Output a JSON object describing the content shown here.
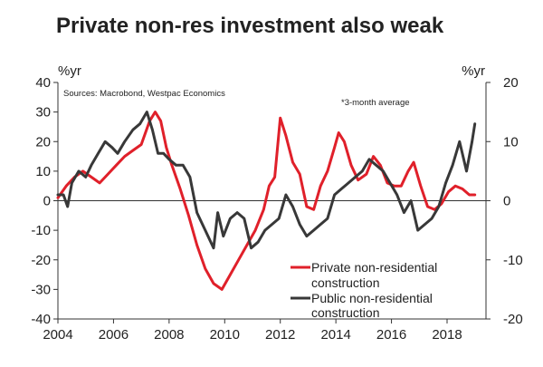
{
  "chart_data": {
    "type": "line",
    "title": "Private non-res investment also weak",
    "source": "Sources: Macrobond, Westpac Economics",
    "note": "*3-month average",
    "y_left": {
      "label": "%yr",
      "range": [
        -40,
        40
      ],
      "ticks": [
        "40",
        "30",
        "20",
        "10",
        "0",
        "-10",
        "-20",
        "-30",
        "-40"
      ]
    },
    "y_right": {
      "label": "%yr",
      "range": [
        -20,
        20
      ],
      "ticks": [
        "20",
        "10",
        "0",
        "-10",
        "-20"
      ]
    },
    "x": {
      "range": [
        2004,
        2019.4
      ],
      "ticks": [
        "2004",
        "2006",
        "2008",
        "2010",
        "2012",
        "2014",
        "2016",
        "2018"
      ]
    },
    "legend": {
      "private_line1": "Private non-residential",
      "private_line2": "construction",
      "public_line1": "Public non-residential",
      "public_line2": "construction"
    },
    "series": [
      {
        "name": "Private non-residential construction",
        "axis": "left",
        "color": "#e0202a",
        "points": [
          [
            2004.0,
            1
          ],
          [
            2004.3,
            5
          ],
          [
            2004.6,
            8
          ],
          [
            2004.9,
            10
          ],
          [
            2005.2,
            8
          ],
          [
            2005.5,
            6
          ],
          [
            2005.8,
            9
          ],
          [
            2006.1,
            12
          ],
          [
            2006.4,
            15
          ],
          [
            2006.7,
            17
          ],
          [
            2007.0,
            19
          ],
          [
            2007.3,
            27
          ],
          [
            2007.5,
            30
          ],
          [
            2007.7,
            27
          ],
          [
            2007.9,
            18
          ],
          [
            2008.1,
            12
          ],
          [
            2008.4,
            4
          ],
          [
            2008.7,
            -5
          ],
          [
            2009.0,
            -15
          ],
          [
            2009.3,
            -23
          ],
          [
            2009.6,
            -28
          ],
          [
            2009.9,
            -30
          ],
          [
            2010.2,
            -25
          ],
          [
            2010.5,
            -20
          ],
          [
            2010.8,
            -15
          ],
          [
            2011.1,
            -10
          ],
          [
            2011.4,
            -3
          ],
          [
            2011.6,
            5
          ],
          [
            2011.8,
            8
          ],
          [
            2012.0,
            28
          ],
          [
            2012.2,
            22
          ],
          [
            2012.45,
            13
          ],
          [
            2012.7,
            9
          ],
          [
            2012.95,
            -2
          ],
          [
            2013.2,
            -3
          ],
          [
            2013.45,
            5
          ],
          [
            2013.7,
            10
          ],
          [
            2013.95,
            18
          ],
          [
            2014.1,
            23
          ],
          [
            2014.3,
            20
          ],
          [
            2014.55,
            12
          ],
          [
            2014.8,
            7
          ],
          [
            2015.1,
            9
          ],
          [
            2015.35,
            15
          ],
          [
            2015.6,
            12
          ],
          [
            2015.85,
            6
          ],
          [
            2016.1,
            5
          ],
          [
            2016.35,
            5
          ],
          [
            2016.6,
            10
          ],
          [
            2016.8,
            13
          ],
          [
            2017.05,
            5
          ],
          [
            2017.3,
            -2
          ],
          [
            2017.55,
            -3
          ],
          [
            2017.8,
            -1
          ],
          [
            2018.05,
            3
          ],
          [
            2018.3,
            5
          ],
          [
            2018.55,
            4
          ],
          [
            2018.8,
            2
          ],
          [
            2019.0,
            2
          ]
        ]
      },
      {
        "name": "Public non-residential construction",
        "axis": "right",
        "color": "#383838",
        "points": [
          [
            2004.0,
            1
          ],
          [
            2004.2,
            1
          ],
          [
            2004.35,
            -1
          ],
          [
            2004.5,
            3
          ],
          [
            2004.75,
            5
          ],
          [
            2005.0,
            4
          ],
          [
            2005.2,
            6
          ],
          [
            2005.45,
            8
          ],
          [
            2005.7,
            10
          ],
          [
            2005.95,
            9
          ],
          [
            2006.15,
            8
          ],
          [
            2006.4,
            10
          ],
          [
            2006.7,
            12
          ],
          [
            2006.95,
            13
          ],
          [
            2007.2,
            15
          ],
          [
            2007.4,
            12
          ],
          [
            2007.6,
            8
          ],
          [
            2007.8,
            8
          ],
          [
            2008.0,
            7
          ],
          [
            2008.25,
            6
          ],
          [
            2008.5,
            6
          ],
          [
            2008.75,
            4
          ],
          [
            2009.0,
            -2
          ],
          [
            2009.3,
            -5
          ],
          [
            2009.6,
            -8
          ],
          [
            2009.75,
            -2
          ],
          [
            2009.95,
            -6
          ],
          [
            2010.2,
            -3
          ],
          [
            2010.45,
            -2
          ],
          [
            2010.7,
            -3
          ],
          [
            2010.95,
            -8
          ],
          [
            2011.2,
            -7
          ],
          [
            2011.45,
            -5
          ],
          [
            2011.7,
            -4
          ],
          [
            2011.95,
            -3
          ],
          [
            2012.2,
            1
          ],
          [
            2012.45,
            -1
          ],
          [
            2012.7,
            -4
          ],
          [
            2012.95,
            -6
          ],
          [
            2013.2,
            -5
          ],
          [
            2013.45,
            -4
          ],
          [
            2013.7,
            -3
          ],
          [
            2013.95,
            1
          ],
          [
            2014.2,
            2
          ],
          [
            2014.45,
            3
          ],
          [
            2014.7,
            4
          ],
          [
            2014.95,
            5
          ],
          [
            2015.2,
            7
          ],
          [
            2015.45,
            6
          ],
          [
            2015.7,
            5
          ],
          [
            2015.95,
            3
          ],
          [
            2016.2,
            1
          ],
          [
            2016.45,
            -2
          ],
          [
            2016.7,
            0
          ],
          [
            2016.95,
            -5
          ],
          [
            2017.2,
            -4
          ],
          [
            2017.45,
            -3
          ],
          [
            2017.7,
            -1
          ],
          [
            2017.95,
            3
          ],
          [
            2018.2,
            6
          ],
          [
            2018.45,
            10
          ],
          [
            2018.7,
            5
          ],
          [
            2018.9,
            10
          ],
          [
            2019.0,
            13
          ]
        ]
      }
    ]
  }
}
